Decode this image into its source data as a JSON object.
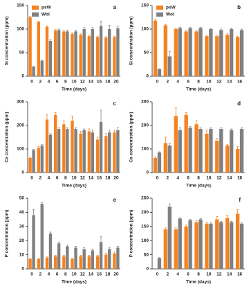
{
  "chart_data": [
    {
      "type": "bar",
      "label": "a",
      "y_label": "Si concentration (ppm)",
      "x_label": "Time (days)",
      "categories": [
        0,
        2,
        4,
        6,
        8,
        10,
        12,
        14,
        16,
        18,
        20
      ],
      "ylim": [
        0,
        150
      ],
      "yticks": [
        0,
        50,
        100,
        150
      ],
      "series": [
        {
          "name": "psW",
          "color": "#f58220",
          "values": [
            125,
            115,
            105,
            97,
            95,
            90,
            88,
            85,
            83,
            82,
            83
          ],
          "errors": [
            2,
            2,
            2,
            2,
            2,
            2,
            2,
            2,
            2,
            2,
            2
          ]
        },
        {
          "name": "Wol",
          "color": "#808080",
          "values": [
            20,
            33,
            75,
            98,
            95,
            95,
            100,
            100,
            107,
            100,
            102
          ],
          "errors": [
            1,
            1,
            2,
            2,
            3,
            3,
            3,
            3,
            10,
            8,
            4
          ]
        }
      ]
    },
    {
      "type": "bar",
      "label": "b",
      "y_label": "Si concentration (ppm)",
      "x_label": "Time (days)",
      "categories": [
        0,
        2,
        4,
        6,
        8,
        10,
        12,
        14,
        16
      ],
      "ylim": [
        0,
        150
      ],
      "yticks": [
        0,
        50,
        100,
        150
      ],
      "series": [
        {
          "name": "psW",
          "color": "#f58220",
          "values": [
            118,
            108,
            100,
            95,
            95,
            85,
            85,
            88,
            83
          ],
          "errors": [
            2,
            2,
            2,
            2,
            2,
            2,
            2,
            2,
            2
          ]
        },
        {
          "name": "Wol",
          "color": "#808080",
          "values": [
            15,
            42,
            102,
            102,
            102,
            100,
            98,
            100,
            98
          ],
          "errors": [
            1,
            10,
            2,
            2,
            2,
            2,
            2,
            2,
            2
          ]
        }
      ]
    },
    {
      "type": "bar",
      "label": "c",
      "y_label": "Ca concentration (ppm)",
      "x_label": "Time (days)",
      "categories": [
        0,
        2,
        4,
        6,
        8,
        10,
        12,
        14,
        16,
        18,
        20
      ],
      "ylim": [
        0,
        300
      ],
      "yticks": [
        0,
        100,
        200,
        300
      ],
      "series": [
        {
          "color": "#f58220",
          "values": [
            62,
            105,
            225,
            245,
            205,
            220,
            165,
            175,
            140,
            155,
            170
          ],
          "errors": [
            3,
            5,
            20,
            10,
            15,
            20,
            10,
            10,
            10,
            10,
            10
          ]
        },
        {
          "color": "#808080",
          "values": [
            95,
            115,
            160,
            185,
            185,
            185,
            180,
            170,
            215,
            170,
            180
          ],
          "errors": [
            3,
            5,
            5,
            5,
            5,
            5,
            5,
            10,
            50,
            10,
            10
          ]
        }
      ]
    },
    {
      "type": "bar",
      "label": "d",
      "y_label": "Ca concentration (ppm)",
      "x_label": "Time (days)",
      "categories": [
        0,
        2,
        4,
        6,
        8,
        10,
        12,
        14,
        16
      ],
      "ylim": [
        0,
        300
      ],
      "yticks": [
        0,
        100,
        200,
        300
      ],
      "series": [
        {
          "color": "#f58220",
          "values": [
            62,
            125,
            240,
            245,
            205,
            165,
            135,
            115,
            100
          ],
          "errors": [
            5,
            25,
            35,
            10,
            15,
            15,
            10,
            5,
            10
          ]
        },
        {
          "color": "#808080",
          "values": [
            85,
            115,
            180,
            190,
            185,
            185,
            185,
            180,
            185
          ],
          "errors": [
            3,
            10,
            10,
            5,
            5,
            5,
            5,
            5,
            5
          ]
        }
      ]
    },
    {
      "type": "bar",
      "label": "e",
      "y_label": "P concentration (ppm)",
      "x_label": "Time (days)",
      "categories": [
        0,
        2,
        4,
        6,
        8,
        10,
        12,
        14,
        16,
        18,
        20
      ],
      "ylim": [
        0,
        50
      ],
      "yticks": [
        0,
        10,
        20,
        30,
        40,
        50
      ],
      "series": [
        {
          "color": "#f58220",
          "values": [
            7,
            7,
            8,
            9,
            9,
            7,
            9,
            9,
            9,
            10,
            11
          ],
          "errors": [
            0.5,
            0.5,
            0.5,
            0.5,
            0.5,
            0.5,
            0.5,
            0.5,
            0.5,
            1,
            1
          ]
        },
        {
          "color": "#808080",
          "values": [
            38,
            46,
            25,
            18,
            16,
            15,
            14,
            13,
            19,
            14,
            15
          ],
          "errors": [
            4,
            1,
            1,
            1,
            1,
            1,
            1,
            1,
            4,
            1,
            1
          ]
        }
      ]
    },
    {
      "type": "bar",
      "label": "f",
      "y_label": "P concentration (ppm)",
      "x_label": "Time (days)",
      "categories": [
        0,
        2,
        4,
        6,
        8,
        10,
        12,
        14,
        16
      ],
      "ylim": [
        0,
        250
      ],
      "yticks": [
        0,
        50,
        100,
        150,
        200,
        250
      ],
      "series": [
        {
          "color": "#f58220",
          "values": [
            null,
            140,
            140,
            150,
            165,
            160,
            175,
            180,
            195
          ],
          "errors": [
            null,
            5,
            5,
            5,
            5,
            5,
            10,
            10,
            15
          ]
        },
        {
          "color": "#808080",
          "values": [
            38,
            220,
            178,
            172,
            175,
            160,
            165,
            165,
            160
          ],
          "errors": [
            2,
            10,
            3,
            3,
            3,
            3,
            3,
            3,
            3
          ]
        }
      ]
    }
  ]
}
